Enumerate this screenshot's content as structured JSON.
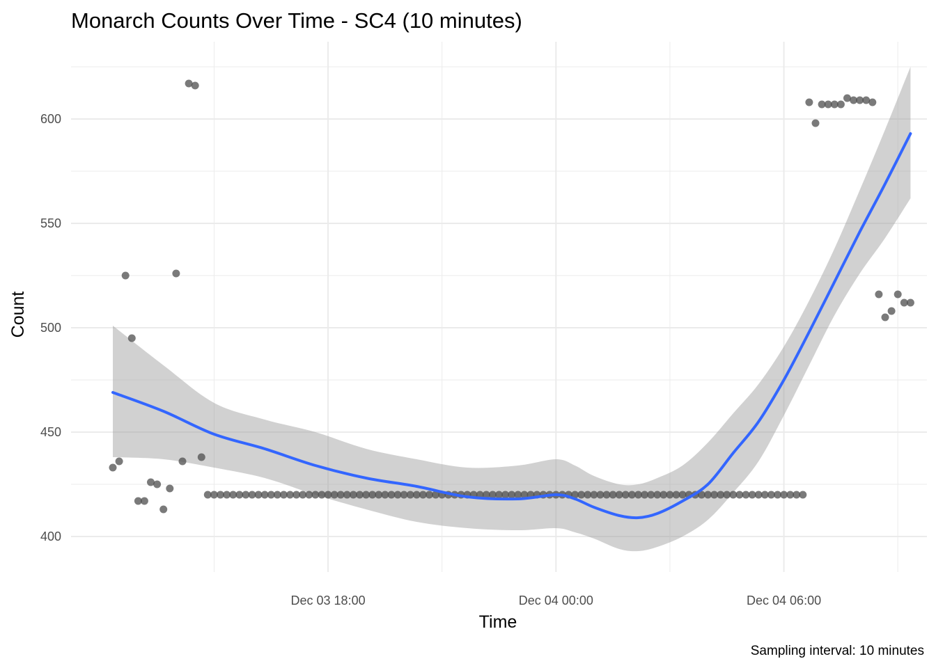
{
  "chart_data": {
    "type": "scatter",
    "title": "Monarch Counts Over Time - SC4 (10 minutes)",
    "xlabel": "Time",
    "ylabel": "Count",
    "caption": "Sampling interval: 10 minutes",
    "x_unit": "datetime",
    "xlim": [
      "2023-12-03 11:14",
      "2023-12-04 09:46"
    ],
    "ylim": [
      383,
      637
    ],
    "x_ticks": [
      {
        "value": "2023-12-03 18:00",
        "label": "Dec 03 18:00"
      },
      {
        "value": "2023-12-04 00:00",
        "label": "Dec 04 00:00"
      },
      {
        "value": "2023-12-04 06:00",
        "label": "Dec 04 06:00"
      }
    ],
    "x_minor_ticks": [
      "2023-12-03 15:00",
      "2023-12-03 21:00",
      "2023-12-04 03:00",
      "2023-12-04 09:00"
    ],
    "y_ticks": [
      400,
      450,
      500,
      550,
      600
    ],
    "y_minor_ticks": [
      425,
      475,
      525,
      575,
      625
    ],
    "grid": true,
    "legend": "none",
    "colors": {
      "points": "#4d4d4d",
      "smooth_line": "#3366FF",
      "confidence_band": "#999999",
      "grid": "#ebebeb"
    },
    "series": [
      {
        "kind": "points",
        "points": [
          {
            "x": "2023-12-03 12:20",
            "y": 433
          },
          {
            "x": "2023-12-03 12:30",
            "y": 436
          },
          {
            "x": "2023-12-03 12:40",
            "y": 525
          },
          {
            "x": "2023-12-03 12:50",
            "y": 495
          },
          {
            "x": "2023-12-03 13:00",
            "y": 417
          },
          {
            "x": "2023-12-03 13:10",
            "y": 417
          },
          {
            "x": "2023-12-03 13:20",
            "y": 426
          },
          {
            "x": "2023-12-03 13:30",
            "y": 425
          },
          {
            "x": "2023-12-03 13:40",
            "y": 413
          },
          {
            "x": "2023-12-03 13:50",
            "y": 423
          },
          {
            "x": "2023-12-03 14:00",
            "y": 526
          },
          {
            "x": "2023-12-03 14:10",
            "y": 436
          },
          {
            "x": "2023-12-03 14:20",
            "y": 617
          },
          {
            "x": "2023-12-03 14:30",
            "y": 616
          },
          {
            "x": "2023-12-03 14:40",
            "y": 438
          },
          {
            "x": "2023-12-04 06:40",
            "y": 608
          },
          {
            "x": "2023-12-04 06:50",
            "y": 598
          },
          {
            "x": "2023-12-04 07:00",
            "y": 607
          },
          {
            "x": "2023-12-04 07:10",
            "y": 607
          },
          {
            "x": "2023-12-04 07:20",
            "y": 607
          },
          {
            "x": "2023-12-04 07:30",
            "y": 607
          },
          {
            "x": "2023-12-04 07:40",
            "y": 610
          },
          {
            "x": "2023-12-04 07:50",
            "y": 609
          },
          {
            "x": "2023-12-04 08:00",
            "y": 609
          },
          {
            "x": "2023-12-04 08:10",
            "y": 609
          },
          {
            "x": "2023-12-04 08:20",
            "y": 608
          },
          {
            "x": "2023-12-04 08:30",
            "y": 516
          },
          {
            "x": "2023-12-04 08:40",
            "y": 505
          },
          {
            "x": "2023-12-04 08:50",
            "y": 508
          },
          {
            "x": "2023-12-04 09:00",
            "y": 516
          },
          {
            "x": "2023-12-04 09:10",
            "y": 512
          },
          {
            "x": "2023-12-04 09:20",
            "y": 512
          }
        ],
        "constant_run": {
          "from": "2023-12-03 14:50",
          "to": "2023-12-04 06:30",
          "step_minutes": 10,
          "y": 420
        }
      },
      {
        "kind": "smooth",
        "fit": [
          {
            "x": "2023-12-03 12:20",
            "y": 469
          },
          {
            "x": "2023-12-03 13:40",
            "y": 460
          },
          {
            "x": "2023-12-03 15:00",
            "y": 449
          },
          {
            "x": "2023-12-03 16:20",
            "y": 442
          },
          {
            "x": "2023-12-03 17:40",
            "y": 434
          },
          {
            "x": "2023-12-03 19:00",
            "y": 428
          },
          {
            "x": "2023-12-03 20:20",
            "y": 424
          },
          {
            "x": "2023-12-03 21:40",
            "y": 419
          },
          {
            "x": "2023-12-03 23:00",
            "y": 418
          },
          {
            "x": "2023-12-04 00:00",
            "y": 420
          },
          {
            "x": "2023-12-04 00:30",
            "y": 418
          },
          {
            "x": "2023-12-04 01:00",
            "y": 414
          },
          {
            "x": "2023-12-04 01:40",
            "y": 410
          },
          {
            "x": "2023-12-04 02:10",
            "y": 409
          },
          {
            "x": "2023-12-04 02:40",
            "y": 411
          },
          {
            "x": "2023-12-04 03:20",
            "y": 417
          },
          {
            "x": "2023-12-04 04:00",
            "y": 425
          },
          {
            "x": "2023-12-04 04:40",
            "y": 440
          },
          {
            "x": "2023-12-04 05:20",
            "y": 455
          },
          {
            "x": "2023-12-04 06:00",
            "y": 475
          },
          {
            "x": "2023-12-04 06:40",
            "y": 498
          },
          {
            "x": "2023-12-04 07:20",
            "y": 522
          },
          {
            "x": "2023-12-04 08:00",
            "y": 546
          },
          {
            "x": "2023-12-04 08:40",
            "y": 569
          },
          {
            "x": "2023-12-04 09:20",
            "y": 593
          }
        ],
        "band_upper": [
          {
            "x": "2023-12-03 12:20",
            "y": 501
          },
          {
            "x": "2023-12-03 13:40",
            "y": 482
          },
          {
            "x": "2023-12-03 15:00",
            "y": 464
          },
          {
            "x": "2023-12-03 16:20",
            "y": 456
          },
          {
            "x": "2023-12-03 17:40",
            "y": 450
          },
          {
            "x": "2023-12-03 19:00",
            "y": 442
          },
          {
            "x": "2023-12-03 20:20",
            "y": 437
          },
          {
            "x": "2023-12-03 21:40",
            "y": 433
          },
          {
            "x": "2023-12-03 23:00",
            "y": 434
          },
          {
            "x": "2023-12-04 00:00",
            "y": 437
          },
          {
            "x": "2023-12-04 00:30",
            "y": 434
          },
          {
            "x": "2023-12-04 01:00",
            "y": 429
          },
          {
            "x": "2023-12-04 01:40",
            "y": 425
          },
          {
            "x": "2023-12-04 02:10",
            "y": 425
          },
          {
            "x": "2023-12-04 02:40",
            "y": 428
          },
          {
            "x": "2023-12-04 03:20",
            "y": 434
          },
          {
            "x": "2023-12-04 04:00",
            "y": 445
          },
          {
            "x": "2023-12-04 04:40",
            "y": 459
          },
          {
            "x": "2023-12-04 05:20",
            "y": 473
          },
          {
            "x": "2023-12-04 06:00",
            "y": 491
          },
          {
            "x": "2023-12-04 06:40",
            "y": 513
          },
          {
            "x": "2023-12-04 07:20",
            "y": 538
          },
          {
            "x": "2023-12-04 08:00",
            "y": 566
          },
          {
            "x": "2023-12-04 08:40",
            "y": 595
          },
          {
            "x": "2023-12-04 09:20",
            "y": 625
          }
        ],
        "band_lower": [
          {
            "x": "2023-12-03 12:20",
            "y": 438
          },
          {
            "x": "2023-12-03 13:40",
            "y": 437
          },
          {
            "x": "2023-12-03 15:00",
            "y": 433
          },
          {
            "x": "2023-12-03 16:20",
            "y": 428
          },
          {
            "x": "2023-12-03 17:40",
            "y": 420
          },
          {
            "x": "2023-12-03 19:00",
            "y": 413
          },
          {
            "x": "2023-12-03 20:20",
            "y": 407
          },
          {
            "x": "2023-12-03 21:40",
            "y": 404
          },
          {
            "x": "2023-12-03 23:00",
            "y": 403
          },
          {
            "x": "2023-12-04 00:00",
            "y": 404
          },
          {
            "x": "2023-12-04 00:30",
            "y": 402
          },
          {
            "x": "2023-12-04 01:00",
            "y": 399
          },
          {
            "x": "2023-12-04 01:40",
            "y": 394
          },
          {
            "x": "2023-12-04 02:10",
            "y": 393
          },
          {
            "x": "2023-12-04 02:40",
            "y": 395
          },
          {
            "x": "2023-12-04 03:20",
            "y": 400
          },
          {
            "x": "2023-12-04 04:00",
            "y": 408
          },
          {
            "x": "2023-12-04 04:40",
            "y": 421
          },
          {
            "x": "2023-12-04 05:20",
            "y": 436
          },
          {
            "x": "2023-12-04 06:00",
            "y": 458
          },
          {
            "x": "2023-12-04 06:40",
            "y": 482
          },
          {
            "x": "2023-12-04 07:20",
            "y": 506
          },
          {
            "x": "2023-12-04 08:00",
            "y": 526
          },
          {
            "x": "2023-12-04 08:40",
            "y": 543
          },
          {
            "x": "2023-12-04 09:20",
            "y": 562
          }
        ]
      }
    ]
  }
}
